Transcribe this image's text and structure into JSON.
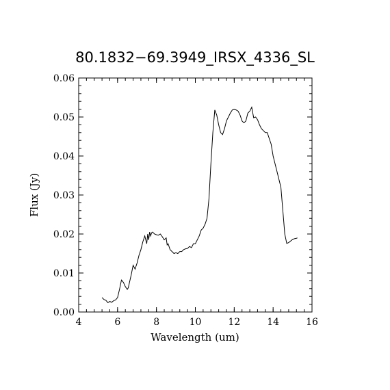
{
  "chart_data": {
    "type": "line",
    "title": "80.1832−69.3949_IRSX_4336_SL",
    "xlabel": "Wavelength (um)",
    "ylabel": "Flux (Jy)",
    "xlim": [
      4,
      16
    ],
    "ylim": [
      0.0,
      0.06
    ],
    "x_ticks": [
      4,
      6,
      8,
      10,
      12,
      14,
      16
    ],
    "x_tick_labels": [
      "4",
      "6",
      "8",
      "10",
      "12",
      "14",
      "16"
    ],
    "y_ticks": [
      0.0,
      0.01,
      0.02,
      0.03,
      0.04,
      0.05,
      0.06
    ],
    "y_tick_labels": [
      "0.00",
      "0.01",
      "0.02",
      "0.03",
      "0.04",
      "0.05",
      "0.06"
    ],
    "x_minor_step": 0.4,
    "y_minor_step": 0.002,
    "grid": false,
    "series": [
      {
        "color": "#000000",
        "x": [
          5.2,
          5.3,
          5.4,
          5.5,
          5.6,
          5.7,
          5.8,
          5.9,
          6.0,
          6.1,
          6.2,
          6.3,
          6.4,
          6.5,
          6.55,
          6.6,
          6.7,
          6.8,
          6.9,
          7.0,
          7.1,
          7.2,
          7.3,
          7.4,
          7.5,
          7.55,
          7.6,
          7.65,
          7.7,
          7.75,
          7.8,
          7.9,
          8.0,
          8.1,
          8.2,
          8.3,
          8.4,
          8.5,
          8.55,
          8.6,
          8.7,
          8.8,
          8.9,
          9.0,
          9.1,
          9.2,
          9.3,
          9.4,
          9.5,
          9.6,
          9.7,
          9.8,
          9.9,
          10.0,
          10.1,
          10.2,
          10.3,
          10.4,
          10.5,
          10.6,
          10.7,
          10.8,
          10.9,
          11.0,
          11.1,
          11.2,
          11.3,
          11.4,
          11.5,
          11.6,
          11.7,
          11.8,
          11.9,
          12.0,
          12.1,
          12.2,
          12.3,
          12.4,
          12.5,
          12.6,
          12.7,
          12.8,
          12.9,
          13.0,
          13.1,
          13.2,
          13.3,
          13.4,
          13.5,
          13.6,
          13.7,
          13.8,
          13.9,
          14.0,
          14.1,
          14.2,
          14.3,
          14.4,
          14.5,
          14.6,
          14.7,
          14.8,
          14.9,
          15.0,
          15.1,
          15.2,
          15.25
        ],
        "y": [
          0.0037,
          0.0032,
          0.003,
          0.0024,
          0.0027,
          0.0025,
          0.0029,
          0.0031,
          0.0037,
          0.0058,
          0.0082,
          0.0076,
          0.0065,
          0.0058,
          0.0062,
          0.0073,
          0.0095,
          0.012,
          0.011,
          0.0125,
          0.0145,
          0.016,
          0.018,
          0.0195,
          0.0175,
          0.02,
          0.0185,
          0.0205,
          0.0195,
          0.0203,
          0.0205,
          0.02,
          0.0198,
          0.0197,
          0.02,
          0.0193,
          0.0185,
          0.019,
          0.0172,
          0.0175,
          0.016,
          0.0155,
          0.015,
          0.0152,
          0.015,
          0.0155,
          0.0155,
          0.016,
          0.0162,
          0.0163,
          0.0168,
          0.0165,
          0.0175,
          0.0175,
          0.0185,
          0.0195,
          0.021,
          0.0215,
          0.0225,
          0.024,
          0.029,
          0.038,
          0.046,
          0.0518,
          0.0505,
          0.048,
          0.046,
          0.0455,
          0.047,
          0.049,
          0.05,
          0.051,
          0.0518,
          0.052,
          0.0518,
          0.0515,
          0.0505,
          0.049,
          0.0485,
          0.049,
          0.051,
          0.0515,
          0.0525,
          0.0498,
          0.05,
          0.0493,
          0.048,
          0.047,
          0.0465,
          0.046,
          0.046,
          0.0445,
          0.043,
          0.04,
          0.038,
          0.036,
          0.034,
          0.032,
          0.026,
          0.02,
          0.0176,
          0.0178,
          0.0182,
          0.0186,
          0.0188,
          0.0189,
          0.019
        ]
      }
    ]
  }
}
